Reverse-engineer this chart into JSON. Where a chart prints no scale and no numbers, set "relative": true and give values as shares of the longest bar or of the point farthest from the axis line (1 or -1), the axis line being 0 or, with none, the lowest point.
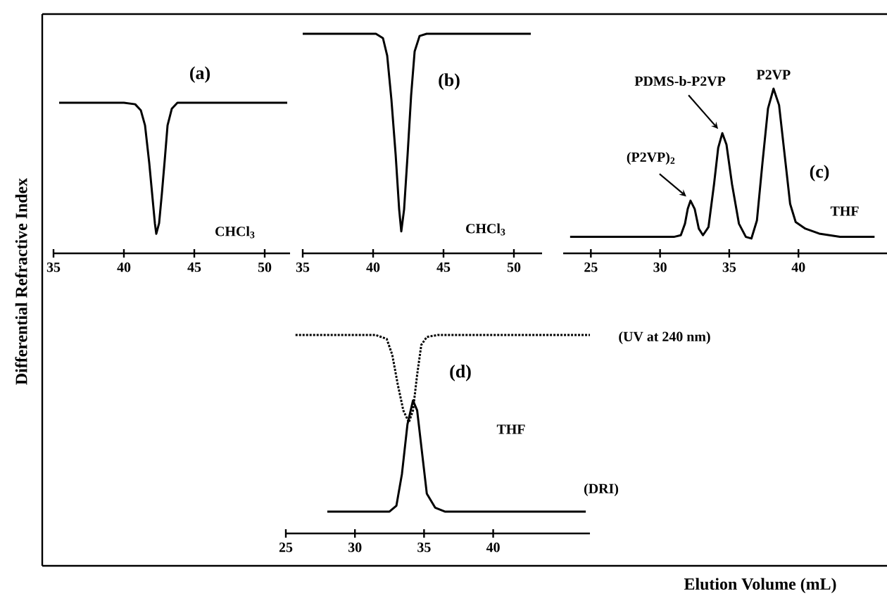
{
  "chart_data": [
    {
      "type": "line",
      "title": "(a)",
      "ylabel": "Differential Refractive Index",
      "relative": true,
      "xlim": [
        35,
        51.8
      ],
      "xticks": [
        35,
        40,
        45,
        50
      ],
      "annotations": [
        "CHCl$_{3}$"
      ],
      "series": [
        {
          "color": "#000000",
          "line_style": "solid",
          "x": [
            35.4,
            40.0,
            40.8,
            41.2,
            41.5,
            41.8,
            42.0,
            42.2,
            42.3,
            42.5,
            42.7,
            42.9,
            43.1,
            43.4,
            43.8,
            51.6
          ],
          "values": [
            1,
            1,
            0.99,
            0.95,
            0.85,
            0.6,
            0.4,
            0.2,
            0.13,
            0.2,
            0.4,
            0.62,
            0.85,
            0.96,
            1,
            1
          ]
        }
      ]
    },
    {
      "type": "line",
      "title": "(b)",
      "relative": true,
      "xlim": [
        35,
        52
      ],
      "xticks": [
        35,
        40,
        45,
        50
      ],
      "annotations": [
        "CHCl$_{3}$"
      ],
      "series": [
        {
          "color": "#000000",
          "line_style": "solid",
          "x": [
            35.0,
            40.2,
            40.7,
            41.0,
            41.3,
            41.6,
            41.85,
            42.0,
            42.2,
            42.45,
            42.7,
            42.95,
            43.3,
            43.8,
            51.2
          ],
          "values": [
            1,
            1,
            0.98,
            0.9,
            0.7,
            0.45,
            0.2,
            0.1,
            0.2,
            0.45,
            0.72,
            0.92,
            0.99,
            1,
            1
          ]
        }
      ]
    },
    {
      "type": "line",
      "title": "(c)",
      "relative": true,
      "xlim": [
        23,
        46.4
      ],
      "xticks": [
        25,
        30,
        35,
        40
      ],
      "annotations": [
        {
          "text": "(P2VP)$_{2}$",
          "x": 32.2,
          "y": 0.32
        },
        {
          "text": "PDMS-b-P2VP",
          "x": 34.5,
          "y": 0.73
        },
        {
          "text": "P2VP",
          "x": 38.2,
          "y": 1.0
        },
        "THF"
      ],
      "series": [
        {
          "color": "#000000",
          "line_style": "solid",
          "x": [
            23.5,
            31.0,
            31.5,
            31.8,
            32.0,
            32.2,
            32.5,
            32.8,
            33.1,
            33.5,
            33.9,
            34.2,
            34.5,
            34.8,
            35.2,
            35.7,
            36.2,
            36.6,
            37.0,
            37.4,
            37.8,
            38.2,
            38.6,
            39.0,
            39.4,
            39.8,
            40.5,
            41.5,
            43.0,
            45.5
          ],
          "values": [
            0.1,
            0.1,
            0.11,
            0.18,
            0.27,
            0.32,
            0.27,
            0.15,
            0.11,
            0.16,
            0.42,
            0.64,
            0.73,
            0.66,
            0.42,
            0.18,
            0.1,
            0.09,
            0.2,
            0.55,
            0.88,
            1.0,
            0.9,
            0.6,
            0.3,
            0.19,
            0.15,
            0.12,
            0.1,
            0.1
          ]
        }
      ]
    },
    {
      "type": "line",
      "title": "(d)",
      "xlabel": "Elution Volume (mL)",
      "relative": true,
      "xlim": [
        25,
        47
      ],
      "xticks": [
        25,
        30,
        35,
        40
      ],
      "annotations": [
        "THF"
      ],
      "series": [
        {
          "name": "(UV at 240 nm)",
          "color": "#000000",
          "line_style": "dotted",
          "x": [
            25.7,
            31.5,
            32.3,
            32.7,
            33.1,
            33.5,
            33.9,
            34.2,
            34.5,
            34.8,
            35.2,
            36.0,
            47.0
          ],
          "values": [
            1,
            1,
            0.98,
            0.9,
            0.75,
            0.62,
            0.56,
            0.62,
            0.8,
            0.95,
            0.99,
            1,
            1
          ]
        },
        {
          "name": "(DRI)",
          "color": "#000000",
          "line_style": "solid",
          "x": [
            28.0,
            32.5,
            33.0,
            33.4,
            33.8,
            34.2,
            34.5,
            34.9,
            35.2,
            35.8,
            36.5,
            46.7
          ],
          "values": [
            0.11,
            0.11,
            0.14,
            0.3,
            0.55,
            0.67,
            0.62,
            0.38,
            0.2,
            0.13,
            0.11,
            0.11
          ]
        }
      ]
    }
  ]
}
